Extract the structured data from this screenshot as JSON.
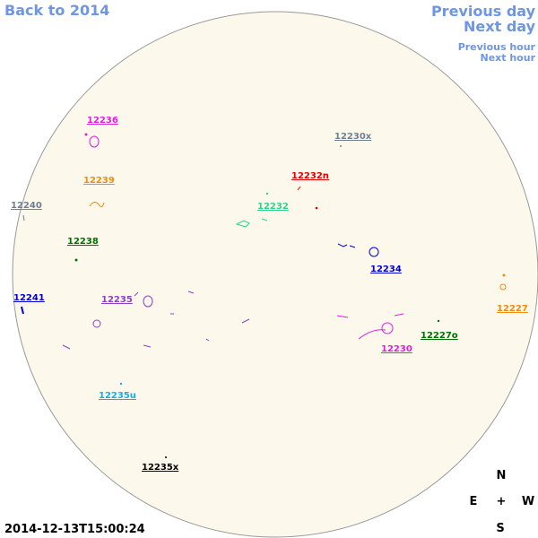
{
  "nav": {
    "back": "Back to 2014",
    "previous_day": "Previous day",
    "next_day": "Next day",
    "previous_hour": "Previous hour",
    "next_hour": "Next hour"
  },
  "regions": [
    {
      "label": "12236",
      "color": "#e020e0"
    },
    {
      "label": "12230x",
      "color": "#708090"
    },
    {
      "label": "12232n",
      "color": "#e00000"
    },
    {
      "label": "12239",
      "color": "#f08c10"
    },
    {
      "label": "12240",
      "color": "#708090"
    },
    {
      "label": "12232",
      "color": "#30d090"
    },
    {
      "label": "12238",
      "color": "#007000"
    },
    {
      "label": "12234",
      "color": "#0000d0"
    },
    {
      "label": "12241",
      "color": "#0000d0"
    },
    {
      "label": "12235",
      "color": "#9040c0"
    },
    {
      "label": "12227",
      "color": "#f08c10"
    },
    {
      "label": "12227o",
      "color": "#007000"
    },
    {
      "label": "12230",
      "color": "#e020e0"
    },
    {
      "label": "12235u",
      "color": "#10b0f0"
    },
    {
      "label": "12235x",
      "color": "#000000"
    }
  ],
  "compass": {
    "north": "N",
    "east": "E",
    "center": "+",
    "west": "W",
    "south": "S"
  },
  "timestamp": "2014-12-13T15:00:24"
}
